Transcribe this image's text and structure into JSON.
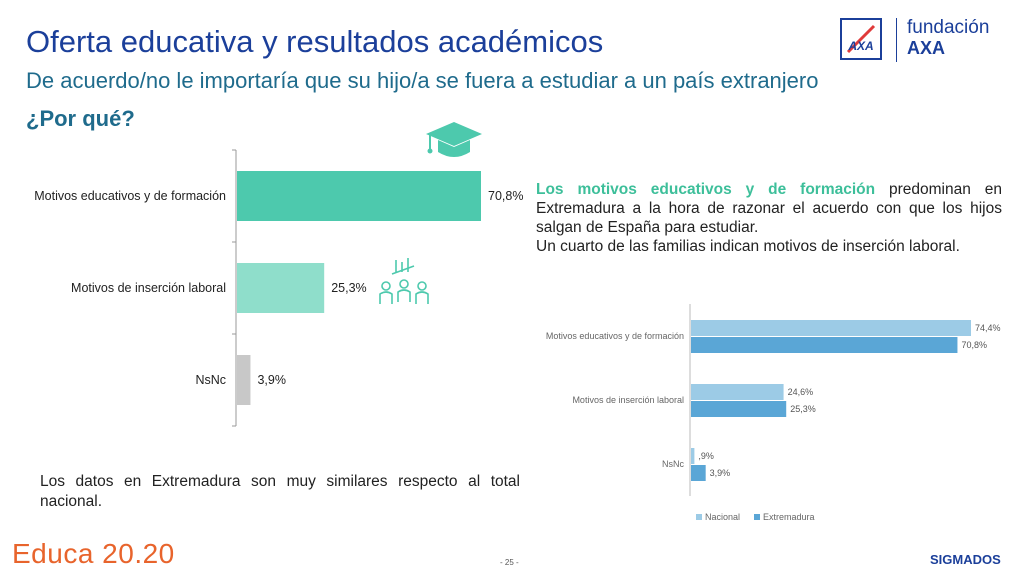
{
  "header": {
    "title": "Oferta educativa y resultados académicos",
    "subtitle": "De acuerdo/no le importaría que su hijo/a se fuera a estudiar a un país extranjero",
    "question": "¿Por qué?"
  },
  "logo": {
    "line1": "fundación",
    "line2": "AXA"
  },
  "text_right": {
    "highlight": "Los motivos educativos y de formación",
    "rest": " predominan en Extremadura a la hora de razonar el acuerdo con que los hijos salgan de España para estudiar.",
    "line2": "Un cuarto de las familias indican motivos de inserción laboral."
  },
  "text_bottom": "Los datos en Extremadura son muy similares respecto al total nacional.",
  "footer": {
    "brand": "Educa 20.20",
    "page": "- 25 -",
    "company": "SIGMADOS"
  },
  "colors": {
    "title": "#1b3f9a",
    "subtitle": "#1f6b8c",
    "bar_main": "#4dc9ad",
    "bar_light": "#8fdecb",
    "bar_gray": "#c8c8c8",
    "nacional": "#9ccbe6",
    "extremadura": "#5aa6d6",
    "highlight": "#3dbf9a",
    "brand": "#e8642c"
  },
  "icons": [
    "graduation-cap-icon",
    "people-growth-icon"
  ],
  "chart_data": [
    {
      "type": "bar",
      "orientation": "horizontal",
      "categories": [
        "Motivos educativos y de formación",
        "Motivos de inserción laboral",
        "NsNc"
      ],
      "values": [
        70.8,
        25.3,
        3.9
      ],
      "labels": [
        "70,8%",
        "25,3%",
        "3,9%"
      ],
      "xlim": [
        0,
        100
      ]
    },
    {
      "type": "bar",
      "orientation": "horizontal",
      "categories": [
        "Motivos educativos y de formación",
        "Motivos de inserción laboral",
        "NsNc"
      ],
      "series": [
        {
          "name": "Nacional",
          "values": [
            74.4,
            24.6,
            0.9
          ],
          "labels": [
            "74,4%",
            "24,6%",
            ",9%"
          ]
        },
        {
          "name": "Extremadura",
          "values": [
            70.8,
            25.3,
            3.9
          ],
          "labels": [
            "70,8%",
            "25,3%",
            "3,9%"
          ]
        }
      ],
      "xlim": [
        0,
        100
      ],
      "legend": "bottom"
    }
  ]
}
